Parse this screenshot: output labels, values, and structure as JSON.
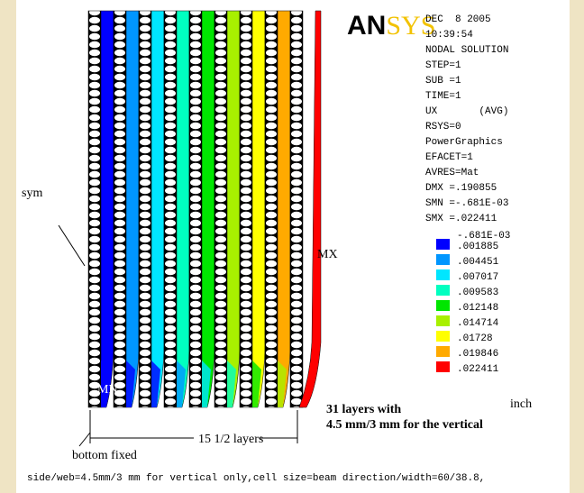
{
  "logo": {
    "part1": "AN",
    "part2": "SYS"
  },
  "info_lines": [
    "DEC  8 2005",
    "10:39:54",
    "NODAL SOLUTION",
    "STEP=1",
    "SUB =1",
    "TIME=1",
    "UX       (AVG)",
    "RSYS=0",
    "PowerGraphics",
    "EFACET=1",
    "AVRES=Mat",
    "DMX =.190855",
    "SMN =-.681E-03",
    "SMX =.022411"
  ],
  "legend": {
    "min_label": "-.681E-03",
    "levels": [
      {
        "label": ".001885",
        "color": "#0000ff"
      },
      {
        "label": ".004451",
        "color": "#0096ff"
      },
      {
        "label": ".007017",
        "color": "#00e6ff"
      },
      {
        "label": ".009583",
        "color": "#00ffc0"
      },
      {
        "label": ".012148",
        "color": "#00e600"
      },
      {
        "label": ".014714",
        "color": "#a8f000"
      },
      {
        "label": ".01728",
        "color": "#ffff00"
      },
      {
        "label": ".019846",
        "color": "#ffaa00"
      },
      {
        "label": ".022411",
        "color": "#ff0000"
      }
    ],
    "unit": "inch"
  },
  "annotations": {
    "sym": "sym",
    "mx": "MX",
    "mn": "MN",
    "layers": "15 1/2 layers",
    "bottom": "bottom fixed",
    "note1": "31 layers with",
    "note2": "4.5 mm/3 mm for the vertical"
  },
  "caption": "side/web=4.5mm/3 mm for vertical only,cell size=beam direction/width=60/38.8,"
}
